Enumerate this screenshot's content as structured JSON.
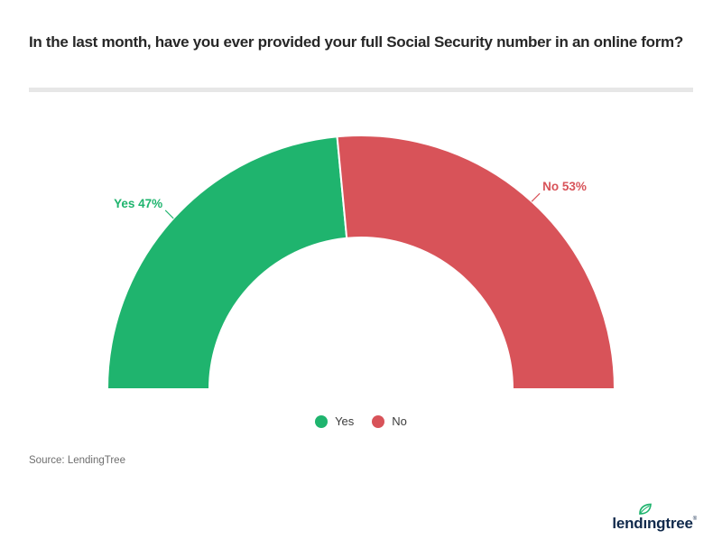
{
  "title": "In the last month, have you ever provided your full Social Security number in an online form?",
  "chart_data": {
    "type": "pie",
    "variant": "half-donut",
    "title": "In the last month, have you ever provided your full Social Security number in an online form?",
    "categories": [
      "Yes",
      "No"
    ],
    "values": [
      47,
      53
    ],
    "unit": "%",
    "colors": [
      "#1fb46e",
      "#d85359"
    ],
    "slice_labels": [
      "Yes 47%",
      "No 53%"
    ],
    "legend_position": "bottom",
    "start_side": "left",
    "sweep_degrees": 180
  },
  "legend": {
    "items": [
      {
        "label": "Yes",
        "color": "#1fb46e"
      },
      {
        "label": "No",
        "color": "#d85359"
      }
    ]
  },
  "source": {
    "text": "Source: LendingTree"
  },
  "footer": {
    "logo": {
      "pre": "lend",
      "dotless_i": "ı",
      "post": "ngtree",
      "reg": "®",
      "text_color": "#112a4c",
      "leaf_color": "#1fb46e"
    }
  },
  "divider_color": "#e7e7e7"
}
